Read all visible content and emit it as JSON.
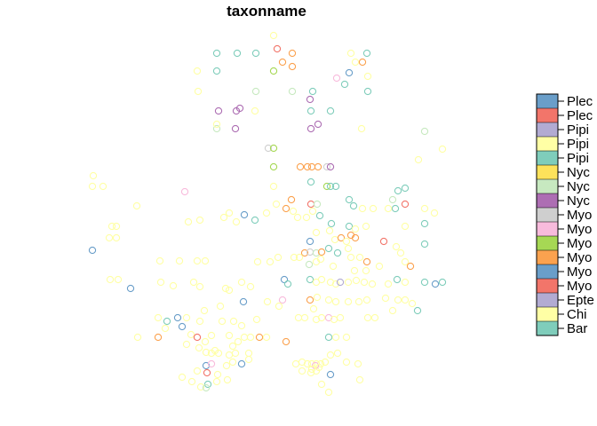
{
  "chart_data": {
    "type": "scatter",
    "title": "taxonname",
    "legend": {
      "placement": "right",
      "entries": [
        {
          "label": "Plec",
          "color": "#6a9ec9"
        },
        {
          "label": "Plec",
          "color": "#f2756a"
        },
        {
          "label": "Pipi",
          "color": "#b2abd2"
        },
        {
          "label": "Pipi",
          "color": "#ffffa5"
        },
        {
          "label": "Pipi",
          "color": "#7fcdbb"
        },
        {
          "label": "Nyc",
          "color": "#fde25b"
        },
        {
          "label": "Nyc",
          "color": "#c7e9c0"
        },
        {
          "label": "Nyc",
          "color": "#ad6eb3"
        },
        {
          "label": "Myo",
          "color": "#cfcfcf"
        },
        {
          "label": "Myo",
          "color": "#f8bbdc"
        },
        {
          "label": "Myo",
          "color": "#a6d854"
        },
        {
          "label": "Myo",
          "color": "#fba24f"
        },
        {
          "label": "Myo",
          "color": "#6a9ec9"
        },
        {
          "label": "Myo",
          "color": "#f2756a"
        },
        {
          "label": "Epte",
          "color": "#b2abd2"
        },
        {
          "label": "Chi",
          "color": "#ffffa5"
        },
        {
          "label": "Bar",
          "color": "#7fcdbb"
        }
      ]
    },
    "points": [
      [
        308,
        40,
        3
      ],
      [
        312,
        55,
        13
      ],
      [
        329,
        60,
        11
      ],
      [
        288,
        60,
        4
      ],
      [
        267,
        60,
        4
      ],
      [
        244,
        60,
        4
      ],
      [
        222,
        80,
        3
      ],
      [
        244,
        80,
        4
      ],
      [
        308,
        80,
        10
      ],
      [
        318,
        70,
        11
      ],
      [
        329,
        75,
        11
      ],
      [
        395,
        60,
        3
      ],
      [
        400,
        70,
        3
      ],
      [
        408,
        70,
        11
      ],
      [
        413,
        60,
        4
      ],
      [
        393,
        82,
        12
      ],
      [
        379,
        88,
        9
      ],
      [
        414,
        86,
        3
      ],
      [
        388,
        95,
        4
      ],
      [
        223,
        103,
        3
      ],
      [
        288,
        103,
        6
      ],
      [
        329,
        103,
        6
      ],
      [
        352,
        103,
        4
      ],
      [
        349,
        112,
        7
      ],
      [
        414,
        103,
        4
      ],
      [
        246,
        125,
        7
      ],
      [
        266,
        125,
        7
      ],
      [
        270,
        122,
        7
      ],
      [
        287,
        125,
        3
      ],
      [
        350,
        125,
        4
      ],
      [
        372,
        125,
        4
      ],
      [
        244,
        145,
        6
      ],
      [
        265,
        145,
        7
      ],
      [
        244,
        140,
        3
      ],
      [
        358,
        140,
        7
      ],
      [
        350,
        145,
        7
      ],
      [
        407,
        145,
        3
      ],
      [
        478,
        148,
        6
      ],
      [
        302,
        167,
        8
      ],
      [
        308,
        167,
        10
      ],
      [
        498,
        168,
        3
      ],
      [
        471,
        180,
        3
      ],
      [
        308,
        188,
        10
      ],
      [
        338,
        188,
        11
      ],
      [
        346,
        188,
        11
      ],
      [
        351,
        188,
        11
      ],
      [
        358,
        188,
        11
      ],
      [
        368,
        188,
        8
      ],
      [
        372,
        188,
        7
      ],
      [
        350,
        205,
        4
      ],
      [
        368,
        210,
        10
      ],
      [
        372,
        210,
        4
      ],
      [
        378,
        210,
        4
      ],
      [
        308,
        210,
        3
      ],
      [
        105,
        198,
        3
      ],
      [
        104,
        210,
        3
      ],
      [
        116,
        210,
        3
      ],
      [
        208,
        216,
        9
      ],
      [
        328,
        225,
        11
      ],
      [
        322,
        235,
        11
      ],
      [
        311,
        230,
        3
      ],
      [
        350,
        230,
        13
      ],
      [
        357,
        230,
        6
      ],
      [
        442,
        225,
        6
      ],
      [
        448,
        215,
        4
      ],
      [
        456,
        212,
        4
      ],
      [
        456,
        230,
        13
      ],
      [
        445,
        235,
        4
      ],
      [
        393,
        225,
        4
      ],
      [
        398,
        232,
        4
      ],
      [
        408,
        235,
        3
      ],
      [
        420,
        235,
        3
      ],
      [
        437,
        235,
        3
      ],
      [
        478,
        235,
        3
      ],
      [
        489,
        240,
        3
      ],
      [
        154,
        232,
        3
      ],
      [
        275,
        242,
        12
      ],
      [
        287,
        248,
        4
      ],
      [
        300,
        240,
        3
      ],
      [
        330,
        238,
        3
      ],
      [
        335,
        245,
        3
      ],
      [
        126,
        255,
        3
      ],
      [
        131,
        255,
        3
      ],
      [
        123,
        268,
        3
      ],
      [
        131,
        268,
        3
      ],
      [
        104,
        282,
        12
      ],
      [
        212,
        250,
        3
      ],
      [
        225,
        248,
        3
      ],
      [
        252,
        245,
        3
      ],
      [
        258,
        240,
        3
      ],
      [
        266,
        250,
        3
      ],
      [
        345,
        245,
        3
      ],
      [
        352,
        238,
        3
      ],
      [
        360,
        243,
        4
      ],
      [
        373,
        252,
        4
      ],
      [
        393,
        255,
        4
      ],
      [
        400,
        258,
        3
      ],
      [
        412,
        255,
        3
      ],
      [
        456,
        255,
        3
      ],
      [
        478,
        252,
        4
      ],
      [
        349,
        272,
        12
      ],
      [
        356,
        262,
        3
      ],
      [
        371,
        260,
        3
      ],
      [
        377,
        270,
        3
      ],
      [
        384,
        268,
        11
      ],
      [
        390,
        272,
        3
      ],
      [
        395,
        265,
        11
      ],
      [
        400,
        268,
        11
      ],
      [
        432,
        272,
        13
      ],
      [
        478,
        275,
        4
      ],
      [
        343,
        285,
        11
      ],
      [
        349,
        284,
        8
      ],
      [
        356,
        285,
        6
      ],
      [
        362,
        284,
        11
      ],
      [
        370,
        280,
        4
      ],
      [
        380,
        285,
        4
      ],
      [
        392,
        280,
        3
      ],
      [
        395,
        290,
        3
      ],
      [
        405,
        290,
        3
      ],
      [
        413,
        295,
        11
      ],
      [
        446,
        278,
        3
      ],
      [
        451,
        285,
        3
      ],
      [
        456,
        295,
        3
      ],
      [
        462,
        300,
        11
      ],
      [
        180,
        294,
        3
      ],
      [
        202,
        294,
        3
      ],
      [
        222,
        294,
        3
      ],
      [
        231,
        294,
        3
      ],
      [
        290,
        295,
        3
      ],
      [
        304,
        295,
        3
      ],
      [
        313,
        290,
        3
      ],
      [
        331,
        290,
        3
      ],
      [
        337,
        290,
        3
      ],
      [
        348,
        298,
        6
      ],
      [
        356,
        295,
        3
      ],
      [
        361,
        292,
        3
      ],
      [
        375,
        300,
        3
      ],
      [
        399,
        305,
        3
      ],
      [
        412,
        305,
        3
      ],
      [
        427,
        300,
        3
      ],
      [
        124,
        315,
        3
      ],
      [
        133,
        315,
        3
      ],
      [
        147,
        325,
        12
      ],
      [
        181,
        318,
        3
      ],
      [
        195,
        322,
        3
      ],
      [
        218,
        318,
        3
      ],
      [
        225,
        323,
        3
      ],
      [
        254,
        325,
        3
      ],
      [
        258,
        327,
        3
      ],
      [
        272,
        318,
        3
      ],
      [
        282,
        323,
        3
      ],
      [
        320,
        315,
        12
      ],
      [
        324,
        320,
        4
      ],
      [
        349,
        315,
        4
      ],
      [
        356,
        318,
        3
      ],
      [
        362,
        315,
        3
      ],
      [
        372,
        318,
        3
      ],
      [
        378,
        320,
        3
      ],
      [
        383,
        318,
        14
      ],
      [
        392,
        318,
        3
      ],
      [
        401,
        316,
        3
      ],
      [
        410,
        318,
        3
      ],
      [
        419,
        320,
        3
      ],
      [
        437,
        320,
        3
      ],
      [
        447,
        315,
        4
      ],
      [
        456,
        318,
        3
      ],
      [
        478,
        318,
        4
      ],
      [
        490,
        320,
        12
      ],
      [
        498,
        318,
        4
      ],
      [
        318,
        338,
        9
      ],
      [
        349,
        338,
        11
      ],
      [
        357,
        335,
        3
      ],
      [
        370,
        338,
        3
      ],
      [
        378,
        340,
        3
      ],
      [
        392,
        340,
        3
      ],
      [
        404,
        340,
        3
      ],
      [
        413,
        338,
        3
      ],
      [
        434,
        336,
        3
      ],
      [
        448,
        338,
        3
      ],
      [
        456,
        338,
        3
      ],
      [
        464,
        342,
        3
      ],
      [
        353,
        348,
        3
      ],
      [
        336,
        358,
        3
      ],
      [
        343,
        358,
        3
      ],
      [
        356,
        360,
        3
      ],
      [
        362,
        358,
        3
      ],
      [
        370,
        358,
        9
      ],
      [
        376,
        360,
        3
      ],
      [
        383,
        358,
        3
      ],
      [
        414,
        358,
        3
      ],
      [
        422,
        358,
        3
      ],
      [
        442,
        350,
        3
      ],
      [
        470,
        350,
        4
      ],
      [
        178,
        358,
        3
      ],
      [
        200,
        358,
        12
      ],
      [
        210,
        358,
        3
      ],
      [
        230,
        350,
        3
      ],
      [
        248,
        345,
        3
      ],
      [
        274,
        340,
        12
      ],
      [
        301,
        340,
        3
      ],
      [
        314,
        345,
        3
      ],
      [
        188,
        362,
        4
      ],
      [
        205,
        368,
        12
      ],
      [
        225,
        362,
        3
      ],
      [
        250,
        362,
        3
      ],
      [
        263,
        362,
        3
      ],
      [
        272,
        367,
        3
      ],
      [
        289,
        360,
        3
      ],
      [
        186,
        370,
        3
      ],
      [
        215,
        377,
        3
      ],
      [
        222,
        380,
        13
      ],
      [
        238,
        378,
        3
      ],
      [
        258,
        378,
        3
      ],
      [
        275,
        380,
        3
      ],
      [
        155,
        380,
        3
      ],
      [
        178,
        380,
        11
      ],
      [
        292,
        380,
        11
      ],
      [
        300,
        380,
        3
      ],
      [
        322,
        385,
        11
      ],
      [
        370,
        380,
        4
      ],
      [
        378,
        380,
        3
      ],
      [
        390,
        380,
        3
      ],
      [
        210,
        388,
        3
      ],
      [
        224,
        392,
        3
      ],
      [
        231,
        385,
        3
      ],
      [
        262,
        390,
        3
      ],
      [
        268,
        385,
        3
      ],
      [
        282,
        380,
        3
      ],
      [
        238,
        398,
        3
      ],
      [
        246,
        398,
        3
      ],
      [
        258,
        400,
        3
      ],
      [
        265,
        398,
        3
      ],
      [
        280,
        398,
        3
      ],
      [
        333,
        410,
        3
      ],
      [
        340,
        408,
        3
      ],
      [
        346,
        410,
        3
      ],
      [
        351,
        410,
        3
      ],
      [
        356,
        410,
        3
      ],
      [
        361,
        410,
        3
      ],
      [
        366,
        408,
        3
      ],
      [
        372,
        400,
        3
      ],
      [
        380,
        398,
        3
      ],
      [
        390,
        408,
        3
      ],
      [
        403,
        410,
        3
      ],
      [
        232,
        412,
        12
      ],
      [
        238,
        410,
        9
      ],
      [
        222,
        418,
        3
      ],
      [
        233,
        420,
        13
      ],
      [
        245,
        422,
        3
      ],
      [
        255,
        412,
        3
      ],
      [
        262,
        408,
        3
      ],
      [
        272,
        410,
        12
      ],
      [
        280,
        405,
        3
      ],
      [
        205,
        425,
        3
      ],
      [
        216,
        430,
        3
      ],
      [
        234,
        433,
        4
      ],
      [
        244,
        430,
        3
      ],
      [
        372,
        422,
        12
      ],
      [
        340,
        418,
        3
      ],
      [
        350,
        420,
        3
      ],
      [
        356,
        418,
        3
      ],
      [
        226,
        436,
        3
      ],
      [
        232,
        437,
        6
      ],
      [
        256,
        428,
        3
      ],
      [
        362,
        433,
        3
      ],
      [
        370,
        442,
        3
      ],
      [
        405,
        428,
        3
      ],
      [
        232,
        397,
        3
      ],
      [
        242,
        395,
        3
      ],
      [
        355,
        412,
        9
      ],
      [
        351,
        416,
        3
      ],
      [
        359,
        414,
        3
      ]
    ]
  }
}
